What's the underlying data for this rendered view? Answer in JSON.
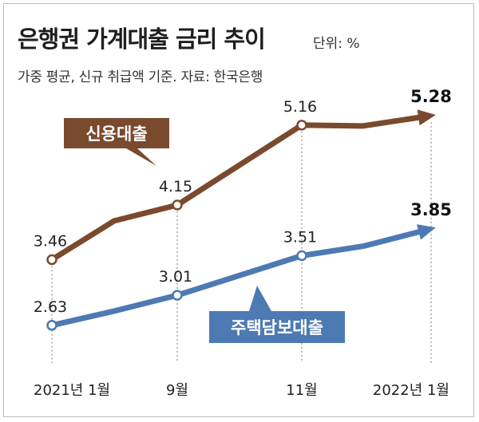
{
  "header": {
    "title": "은행권 가계대출 금리 추이",
    "unit": "단위: %",
    "subtitle": "가중 평균, 신규 취급액 기준.   자료: 한국은행"
  },
  "colors": {
    "credit": "#7a4a2e",
    "mortgage": "#4d7ab3",
    "callout_credit": "#7a4a2e",
    "callout_mortgage": "#4d7ab3"
  },
  "chart_data": {
    "type": "line",
    "x_ticks": [
      "2021년 1월",
      "9월",
      "11월",
      "2022년 1월"
    ],
    "series": [
      {
        "name": "신용대출",
        "points": [
          {
            "x": "2021-01",
            "y": 3.46,
            "label": "3.46"
          },
          {
            "x": "2021-05",
            "y": 3.95
          },
          {
            "x": "2021-09",
            "y": 4.15,
            "label": "4.15"
          },
          {
            "x": "2021-11",
            "y": 5.16,
            "label": "5.16"
          },
          {
            "x": "2021-12",
            "y": 5.15
          },
          {
            "x": "2022-01",
            "y": 5.28,
            "label": "5.28"
          }
        ]
      },
      {
        "name": "주택담보대출",
        "points": [
          {
            "x": "2021-01",
            "y": 2.63,
            "label": "2.63"
          },
          {
            "x": "2021-05",
            "y": 2.81
          },
          {
            "x": "2021-09",
            "y": 3.01,
            "label": "3.01"
          },
          {
            "x": "2021-11",
            "y": 3.51,
            "label": "3.51"
          },
          {
            "x": "2021-12",
            "y": 3.63
          },
          {
            "x": "2022-01",
            "y": 3.85,
            "label": "3.85"
          }
        ]
      }
    ]
  }
}
